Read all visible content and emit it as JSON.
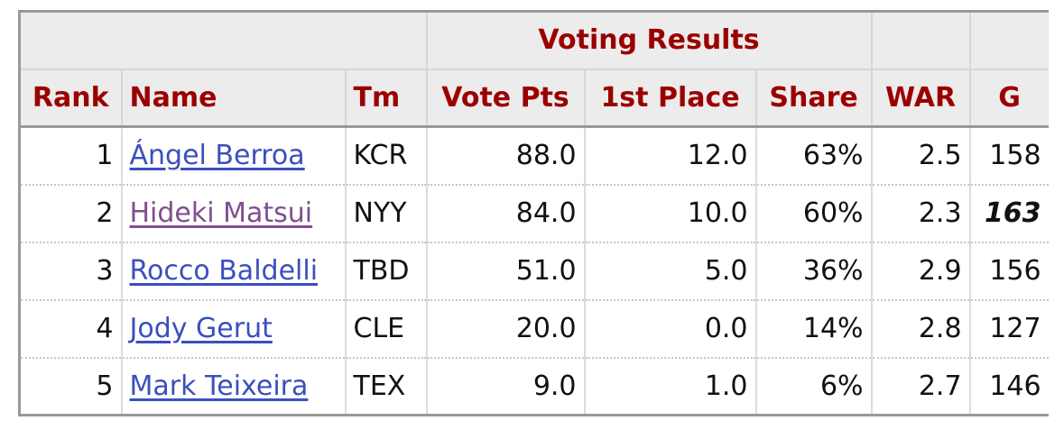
{
  "table": {
    "group_header": "Voting Results",
    "headers": [
      "Rank",
      "Name",
      "Tm",
      "Vote Pts",
      "1st Place",
      "Share",
      "WAR",
      "G"
    ],
    "rows": [
      [
        "1",
        "Ángel Berroa",
        "KCR",
        "88.0",
        "12.0",
        "63%",
        "2.5",
        "158"
      ],
      [
        "2",
        "Hideki Matsui",
        "NYY",
        "84.0",
        "10.0",
        "60%",
        "2.3",
        "163"
      ],
      [
        "3",
        "Rocco Baldelli",
        "TBD",
        "51.0",
        "5.0",
        "36%",
        "2.9",
        "156"
      ],
      [
        "4",
        "Jody Gerut",
        "CLE",
        "20.0",
        "0.0",
        "14%",
        "2.8",
        "127"
      ],
      [
        "5",
        "Mark Teixeira",
        "TEX",
        "9.0",
        "1.0",
        "6%",
        "2.7",
        "146"
      ]
    ]
  }
}
